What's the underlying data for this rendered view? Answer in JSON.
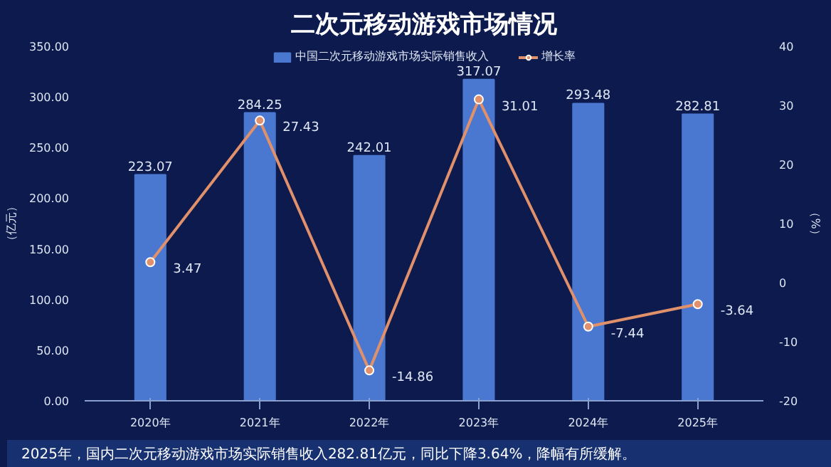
{
  "chart_data": {
    "type": "bar",
    "title": "二次元移动游戏市场情况",
    "categories": [
      "2020年",
      "2021年",
      "2022年",
      "2023年",
      "2024年",
      "2025年"
    ],
    "series": [
      {
        "name": "中国二次元移动游戏市场实际销售收入",
        "color": "#4a78d0",
        "values": [
          223.07,
          284.25,
          242.01,
          317.07,
          293.48,
          282.81
        ]
      },
      {
        "name": "增长率",
        "type": "line",
        "axis": "y2",
        "color": "#e0906a",
        "values": [
          3.47,
          27.43,
          -14.86,
          31.01,
          -7.44,
          -3.64
        ]
      }
    ],
    "ylabel": "（亿元）",
    "y2label": "（%）",
    "ylim": [
      0,
      350
    ],
    "yticks": [
      {
        "value": 0,
        "label": "0.00"
      },
      {
        "value": 50,
        "label": "50.00"
      },
      {
        "value": 100,
        "label": "100.00"
      },
      {
        "value": 150,
        "label": "150.00"
      },
      {
        "value": 200,
        "label": "200.00"
      },
      {
        "value": 250,
        "label": "250.00"
      },
      {
        "value": 300,
        "label": "300.00"
      },
      {
        "value": 350,
        "label": "350.00"
      }
    ],
    "y2lim": [
      -20,
      40
    ],
    "y2ticks": [
      -20,
      -10,
      0,
      10,
      20,
      30,
      40
    ],
    "data_labels": true,
    "marker": "circle",
    "legend": "top",
    "grid": false,
    "annotations": [
      "2025年，国内二次元移动游戏市场实际销售收入282.81亿元，同比下降3.64%，降幅有所缓解。"
    ]
  }
}
